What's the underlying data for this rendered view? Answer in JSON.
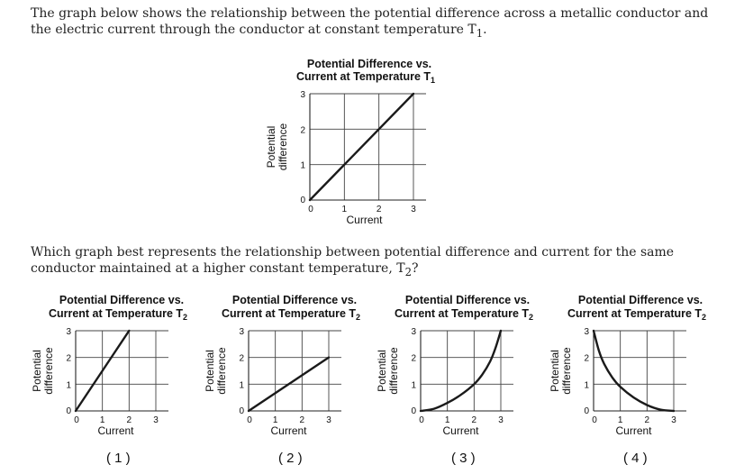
{
  "intro_text": "The graph below shows the relationship between the potential difference across a metallic conductor and the electric current through the conductor at constant temperature T",
  "intro_sub": "1",
  "intro_end": ".",
  "question_text": "Which graph best represents the relationship between potential difference and current for the same conductor maintained at a higher constant temperature, T",
  "question_sub": "2",
  "question_end": "?",
  "chart_data": [
    {
      "type": "line",
      "title_line1": "Potential Difference vs.",
      "title_line2": "Current at Temperature T",
      "title_sub": "1",
      "xlabel": "Current",
      "ylabel_line1": "Potential",
      "ylabel_line2": "difference",
      "xlim": [
        0,
        3
      ],
      "ylim": [
        0,
        3
      ],
      "xticks": [
        "0",
        "1",
        "2",
        "3"
      ],
      "yticks": [
        "0",
        "1",
        "2",
        "3"
      ],
      "grid": true,
      "x": [
        0,
        3
      ],
      "y": [
        0,
        3
      ]
    },
    {
      "type": "line",
      "option_label": "( 1 )",
      "title_line1": "Potential Difference vs.",
      "title_line2": "Current at Temperature T",
      "title_sub": "2",
      "xlabel": "Current",
      "ylabel_line1": "Potential",
      "ylabel_line2": "difference",
      "xlim": [
        0,
        3
      ],
      "ylim": [
        0,
        3
      ],
      "xticks": [
        "0",
        "1",
        "2",
        "3"
      ],
      "yticks": [
        "0",
        "1",
        "2",
        "3"
      ],
      "grid": true,
      "x": [
        0,
        2
      ],
      "y": [
        0,
        3
      ]
    },
    {
      "type": "line",
      "option_label": "( 2 )",
      "title_line1": "Potential Difference vs.",
      "title_line2": "Current at Temperature T",
      "title_sub": "2",
      "xlabel": "Current",
      "ylabel_line1": "Potential",
      "ylabel_line2": "difference",
      "xlim": [
        0,
        3
      ],
      "ylim": [
        0,
        3
      ],
      "xticks": [
        "0",
        "1",
        "2",
        "3"
      ],
      "yticks": [
        "0",
        "1",
        "2",
        "3"
      ],
      "grid": true,
      "x": [
        0,
        3
      ],
      "y": [
        0,
        2
      ]
    },
    {
      "type": "line",
      "option_label": "( 3 )",
      "title_line1": "Potential Difference vs.",
      "title_line2": "Current at Temperature T",
      "title_sub": "2",
      "xlabel": "Current",
      "ylabel_line1": "Potential",
      "ylabel_line2": "difference",
      "xlim": [
        0,
        3
      ],
      "ylim": [
        0,
        3
      ],
      "xticks": [
        "0",
        "1",
        "2",
        "3"
      ],
      "yticks": [
        "0",
        "1",
        "2",
        "3"
      ],
      "grid": true,
      "x": [
        0,
        0.5,
        1,
        1.5,
        2,
        2.3,
        2.6,
        2.8,
        3
      ],
      "y": [
        0,
        0.08,
        0.3,
        0.6,
        1.0,
        1.35,
        1.85,
        2.35,
        3.0
      ]
    },
    {
      "type": "line",
      "option_label": "( 4 )",
      "title_line1": "Potential Difference vs.",
      "title_line2": "Current at Temperature T",
      "title_sub": "2",
      "xlabel": "Current",
      "ylabel_line1": "Potential",
      "ylabel_line2": "difference",
      "xlim": [
        0,
        3
      ],
      "ylim": [
        0,
        3
      ],
      "xticks": [
        "0",
        "1",
        "2",
        "3"
      ],
      "yticks": [
        "0",
        "1",
        "2",
        "3"
      ],
      "grid": true,
      "x": [
        0,
        0.2,
        0.4,
        0.7,
        1,
        1.5,
        2,
        2.5,
        3
      ],
      "y": [
        3.0,
        2.25,
        1.75,
        1.25,
        0.9,
        0.5,
        0.22,
        0.05,
        0
      ]
    }
  ]
}
